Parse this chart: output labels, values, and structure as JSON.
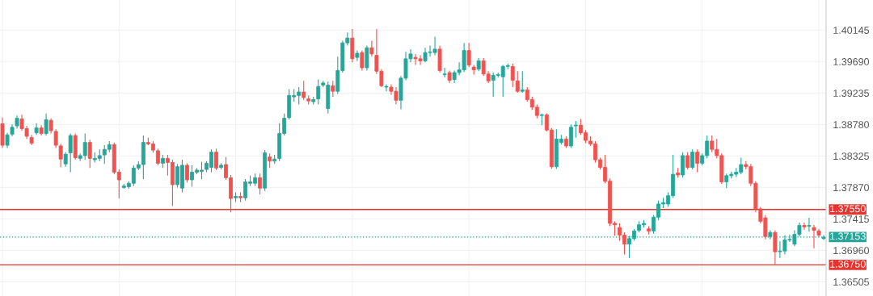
{
  "chart_data": {
    "type": "candlestick",
    "categories": [
      null,
      null,
      null,
      null,
      null,
      null,
      null,
      null,
      null,
      null,
      null,
      null,
      null,
      null,
      null,
      null,
      null,
      null,
      null,
      null,
      null,
      null,
      null,
      null,
      null,
      null,
      null,
      null,
      null,
      null,
      null,
      null,
      null,
      null,
      null,
      null,
      null,
      null,
      null,
      null,
      null,
      null,
      null,
      null,
      null,
      null,
      null,
      null,
      null,
      null,
      null,
      null,
      null,
      null,
      null,
      null,
      null,
      null,
      null,
      null,
      null,
      null,
      null,
      null,
      null,
      null,
      null,
      null,
      null,
      null,
      null,
      null,
      null,
      null,
      null,
      null,
      null,
      null,
      null,
      null,
      null,
      null,
      null,
      null,
      null,
      null,
      null,
      null,
      null,
      null,
      null,
      null,
      null,
      null,
      null,
      null,
      null,
      null,
      null,
      null,
      null,
      null,
      null,
      null,
      null,
      null,
      null,
      null,
      null,
      null,
      null,
      null,
      null,
      null,
      null,
      null,
      null,
      null,
      null,
      null,
      null,
      null,
      null,
      null,
      null,
      null,
      null,
      null,
      null,
      null,
      null,
      null,
      null,
      null,
      null,
      null,
      null,
      null,
      null,
      null,
      null,
      null,
      null,
      null,
      null,
      null,
      null,
      null,
      null,
      null,
      null,
      null,
      null,
      null,
      null,
      null,
      null,
      null,
      null,
      null,
      null,
      null,
      null,
      null,
      null,
      null,
      null,
      null,
      null,
      null
    ],
    "colors": [
      "#ef5350",
      "#26a69a",
      "#26a69a",
      "#26a69a",
      "#ef5350",
      "#ef5350",
      "#ef5350",
      "#26a69a",
      "#ef5350",
      "#26a69a",
      "#ef5350",
      "#ef5350",
      "#ef5350",
      "#26a69a",
      "#26a69a",
      "#ef5350",
      "#26a69a",
      "#26a69a",
      "#ef5350",
      "#26a69a",
      "#26a69a",
      "#26a69a",
      "#26a69a",
      "#ef5350",
      "#ef5350",
      "#26a69a",
      "#26a69a",
      "#26a69a",
      "#26a69a",
      "#26a69a",
      "#ef5350",
      "#ef5350",
      "#ef5350",
      "#26a69a",
      "#ef5350",
      "#ef5350",
      "#26a69a",
      "#26a69a",
      "#ef5350",
      "#26a69a",
      "#26a69a",
      "#26a69a",
      "#26a69a",
      "#26a69a",
      "#ef5350",
      "#26a69a",
      "#ef5350",
      "#ef5350",
      "#26a69a",
      "#ef5350",
      "#26a69a",
      "#26a69a",
      "#26a69a",
      "#ef5350",
      "#26a69a",
      "#ef5350",
      "#26a69a",
      "#26a69a",
      "#26a69a",
      "#26a69a",
      "#26a69a",
      "#26a69a",
      "#ef5350",
      "#ef5350",
      "#26a69a",
      "#26a69a",
      "#26a69a",
      "#26a69a",
      "#ef5350",
      "#26a69a",
      "#26a69a",
      "#26a69a",
      "#ef5350",
      "#26a69a",
      "#ef5350",
      "#26a69a",
      "#ef5350",
      "#ef5350",
      "#ef5350",
      "#26a69a",
      "#ef5350",
      "#ef5350",
      "#26a69a",
      "#26a69a",
      "#26a69a",
      "#ef5350",
      "#ef5350",
      "#26a69a",
      "#26a69a",
      "#26a69a",
      "#ef5350",
      "#26a69a",
      "#ef5350",
      "#26a69a",
      "#26a69a",
      "#26a69a",
      "#ef5350",
      "#ef5350",
      "#26a69a",
      "#ef5350",
      "#ef5350",
      "#26a69a",
      "#26a69a",
      "#26a69a",
      "#26a69a",
      "#ef5350",
      "#ef5350",
      "#26a69a",
      "#ef5350",
      "#ef5350",
      "#ef5350",
      "#26a69a",
      "#ef5350",
      "#ef5350",
      "#26a69a",
      "#26a69a",
      "#ef5350",
      "#26a69a",
      "#26a69a",
      "#ef5350",
      "#ef5350",
      "#ef5350",
      "#ef5350",
      "#ef5350",
      "#ef5350",
      "#ef5350",
      "#ef5350",
      "#ef5350",
      "#ef5350",
      "#26a69a",
      "#26a69a",
      "#26a69a",
      "#26a69a",
      "#ef5350",
      "#26a69a",
      "#26a69a",
      "#26a69a",
      "#26a69a",
      "#26a69a",
      "#ef5350",
      "#26a69a",
      "#ef5350",
      "#26a69a",
      "#ef5350",
      "#26a69a",
      "#26a69a",
      "#ef5350",
      "#ef5350",
      "#ef5350",
      "#26a69a",
      "#26a69a",
      "#26a69a",
      "#26a69a",
      "#ef5350",
      "#ef5350",
      "#ef5350",
      "#ef5350",
      "#ef5350",
      "#26a69a",
      "#ef5350",
      "#26a69a",
      "#26a69a",
      "#26a69a",
      "#26a69a",
      "#26a69a",
      "#ef5350",
      "#26a69a",
      "#ef5350",
      "#ef5350",
      "#26a69a"
    ],
    "ohlc": [
      [
        1.3879,
        1.3888,
        1.3844,
        1.3848
      ],
      [
        1.3848,
        1.3866,
        1.3844,
        1.3863
      ],
      [
        1.3864,
        1.3878,
        1.3861,
        1.3874
      ],
      [
        1.3876,
        1.3891,
        1.3872,
        1.3887
      ],
      [
        1.3886,
        1.3892,
        1.3869,
        1.3872
      ],
      [
        1.3872,
        1.3876,
        1.3857,
        1.3861
      ],
      [
        1.3859,
        1.3863,
        1.3848,
        1.3851
      ],
      [
        1.3866,
        1.388,
        1.3863,
        1.3873
      ],
      [
        1.3873,
        1.3877,
        1.3862,
        1.3865
      ],
      [
        1.3865,
        1.3894,
        1.3862,
        1.3885
      ],
      [
        1.3884,
        1.3887,
        1.3865,
        1.3869
      ],
      [
        1.3868,
        1.3871,
        1.3844,
        1.3848
      ],
      [
        1.3847,
        1.385,
        1.3816,
        1.3828
      ],
      [
        1.3821,
        1.3838,
        1.3817,
        1.3835
      ],
      [
        1.3837,
        1.3865,
        1.3809,
        1.3862
      ],
      [
        1.3862,
        1.3865,
        1.3827,
        1.383
      ],
      [
        1.3829,
        1.3836,
        1.3825,
        1.3833
      ],
      [
        1.3833,
        1.3865,
        1.3827,
        1.3852
      ],
      [
        1.3852,
        1.3856,
        1.3815,
        1.3829
      ],
      [
        1.3827,
        1.3838,
        1.3823,
        1.3829
      ],
      [
        1.3829,
        1.3842,
        1.3825,
        1.3833
      ],
      [
        1.3834,
        1.3848,
        1.3821,
        1.3842
      ],
      [
        1.3842,
        1.3854,
        1.3838,
        1.3849
      ],
      [
        1.3849,
        1.3852,
        1.3806,
        1.3809
      ],
      [
        1.3809,
        1.3813,
        1.3771,
        1.3798
      ],
      [
        1.3787,
        1.3792,
        1.3785,
        1.3789
      ],
      [
        1.3788,
        1.3796,
        1.3785,
        1.3793
      ],
      [
        1.3793,
        1.3819,
        1.3789,
        1.3815
      ],
      [
        1.3815,
        1.3825,
        1.3812,
        1.382
      ],
      [
        1.382,
        1.3862,
        1.3799,
        1.3852
      ],
      [
        1.3852,
        1.3859,
        1.3848,
        1.385
      ],
      [
        1.385,
        1.3854,
        1.3837,
        1.3841
      ],
      [
        1.384,
        1.3843,
        1.3819,
        1.3822
      ],
      [
        1.3822,
        1.3834,
        1.3815,
        1.3829
      ],
      [
        1.3829,
        1.3834,
        1.3804,
        1.3823
      ],
      [
        1.3823,
        1.3827,
        1.376,
        1.3791
      ],
      [
        1.3791,
        1.3821,
        1.3787,
        1.3817
      ],
      [
        1.3786,
        1.3827,
        1.378,
        1.3819
      ],
      [
        1.3819,
        1.3822,
        1.3794,
        1.3798
      ],
      [
        1.3798,
        1.3819,
        1.3788,
        1.3809
      ],
      [
        1.3809,
        1.3815,
        1.3806,
        1.3812
      ],
      [
        1.381,
        1.3824,
        1.3799,
        1.3812
      ],
      [
        1.3813,
        1.3825,
        1.3809,
        1.3822
      ],
      [
        1.3816,
        1.3842,
        1.3809,
        1.3838
      ],
      [
        1.3838,
        1.3843,
        1.3812,
        1.3815
      ],
      [
        1.3816,
        1.3822,
        1.3813,
        1.3819
      ],
      [
        1.382,
        1.3831,
        1.3798,
        1.3801
      ],
      [
        1.3801,
        1.3805,
        1.3751,
        1.3771
      ],
      [
        1.3772,
        1.378,
        1.3766,
        1.3774
      ],
      [
        1.3774,
        1.378,
        1.3766,
        1.3772
      ],
      [
        1.3772,
        1.3799,
        1.3768,
        1.3795
      ],
      [
        1.3793,
        1.3804,
        1.3789,
        1.3795
      ],
      [
        1.3793,
        1.3807,
        1.3789,
        1.3801
      ],
      [
        1.3801,
        1.3807,
        1.3777,
        1.3786
      ],
      [
        1.3786,
        1.3841,
        1.3782,
        1.3837
      ],
      [
        1.3831,
        1.3836,
        1.3815,
        1.3825
      ],
      [
        1.3825,
        1.3834,
        1.3821,
        1.3828
      ],
      [
        1.3829,
        1.388,
        1.3825,
        1.3865
      ],
      [
        1.3865,
        1.3894,
        1.3862,
        1.3887
      ],
      [
        1.3888,
        1.3929,
        1.3885,
        1.392
      ],
      [
        1.3918,
        1.3929,
        1.3911,
        1.392
      ],
      [
        1.392,
        1.3932,
        1.3907,
        1.3925
      ],
      [
        1.3925,
        1.3941,
        1.3913,
        1.3917
      ],
      [
        1.3915,
        1.392,
        1.3907,
        1.3912
      ],
      [
        1.3911,
        1.3918,
        1.3907,
        1.3914
      ],
      [
        1.3915,
        1.3943,
        1.3907,
        1.3933
      ],
      [
        1.3935,
        1.3941,
        1.3932,
        1.3938
      ],
      [
        1.3901,
        1.394,
        1.3894,
        1.3935
      ],
      [
        1.3934,
        1.3941,
        1.3918,
        1.3926
      ],
      [
        1.3926,
        1.3976,
        1.3922,
        1.3956
      ],
      [
        1.3956,
        1.3999,
        1.3953,
        1.3996
      ],
      [
        1.3996,
        1.4011,
        1.3992,
        1.4003
      ],
      [
        1.4003,
        1.4016,
        1.3968,
        1.3973
      ],
      [
        1.3975,
        1.3985,
        1.397,
        1.3981
      ],
      [
        1.3982,
        1.3985,
        1.3956,
        1.396
      ],
      [
        1.396,
        1.3992,
        1.3956,
        1.3989
      ],
      [
        1.3989,
        1.3999,
        1.3976,
        1.398
      ],
      [
        1.3978,
        1.4016,
        1.3951,
        1.3955
      ],
      [
        1.3955,
        1.3958,
        1.3932,
        1.3934
      ],
      [
        1.3932,
        1.3936,
        1.3926,
        1.3933
      ],
      [
        1.3932,
        1.3936,
        1.3921,
        1.3926
      ],
      [
        1.3926,
        1.3932,
        1.3907,
        1.3913
      ],
      [
        1.3913,
        1.3948,
        1.39,
        1.3945
      ],
      [
        1.3945,
        1.3983,
        1.3942,
        1.3973
      ],
      [
        1.3973,
        1.3987,
        1.3968,
        1.398
      ],
      [
        1.3975,
        1.398,
        1.3964,
        1.3973
      ],
      [
        1.3973,
        1.3978,
        1.3964,
        1.397
      ],
      [
        1.397,
        1.3989,
        1.3968,
        1.3982
      ],
      [
        1.3982,
        1.3992,
        1.3976,
        1.3983
      ],
      [
        1.3982,
        1.4005,
        1.3978,
        1.3987
      ],
      [
        1.3987,
        1.3992,
        1.3953,
        1.3956
      ],
      [
        1.395,
        1.396,
        1.3946,
        1.3951
      ],
      [
        1.3953,
        1.3956,
        1.3938,
        1.3942
      ],
      [
        1.3943,
        1.3956,
        1.3938,
        1.3953
      ],
      [
        1.3953,
        1.3968,
        1.3949,
        1.3957
      ],
      [
        1.3957,
        1.3996,
        1.3954,
        1.3985
      ],
      [
        1.3985,
        1.3996,
        1.3961,
        1.3964
      ],
      [
        1.3961,
        1.3964,
        1.395,
        1.3957
      ],
      [
        1.3958,
        1.3974,
        1.3955,
        1.397
      ],
      [
        1.397,
        1.3974,
        1.3948,
        1.3951
      ],
      [
        1.3951,
        1.3955,
        1.3938,
        1.3941
      ],
      [
        1.3942,
        1.3953,
        1.3918,
        1.3949
      ],
      [
        1.3949,
        1.3953,
        1.3946,
        1.395
      ],
      [
        1.3947,
        1.3964,
        1.3918,
        1.3962
      ],
      [
        1.3962,
        1.3966,
        1.3958,
        1.3963
      ],
      [
        1.3962,
        1.3966,
        1.3932,
        1.3942
      ],
      [
        1.3941,
        1.3955,
        1.3924,
        1.3926
      ],
      [
        1.3926,
        1.3955,
        1.3924,
        1.3928
      ],
      [
        1.3928,
        1.3932,
        1.3911,
        1.3914
      ],
      [
        1.3914,
        1.3918,
        1.3899,
        1.3903
      ],
      [
        1.3903,
        1.3907,
        1.3887,
        1.3891
      ],
      [
        1.3891,
        1.3894,
        1.3877,
        1.3892
      ],
      [
        1.3892,
        1.3894,
        1.3868,
        1.387
      ],
      [
        1.387,
        1.3873,
        1.3814,
        1.3817
      ],
      [
        1.3817,
        1.3871,
        1.3814,
        1.3857
      ],
      [
        1.3852,
        1.3863,
        1.3849,
        1.3857
      ],
      [
        1.3857,
        1.3861,
        1.3844,
        1.3847
      ],
      [
        1.3847,
        1.3878,
        1.3844,
        1.3874
      ],
      [
        1.3876,
        1.3883,
        1.3859,
        1.3877
      ],
      [
        1.3877,
        1.3886,
        1.3863,
        1.3866
      ],
      [
        1.3866,
        1.387,
        1.3851,
        1.3855
      ],
      [
        1.3854,
        1.3861,
        1.3847,
        1.385
      ],
      [
        1.385,
        1.3854,
        1.3823,
        1.3827
      ],
      [
        1.3827,
        1.383,
        1.3813,
        1.3816
      ],
      [
        1.3816,
        1.3834,
        1.3793,
        1.3796
      ],
      [
        1.3796,
        1.38,
        1.3731,
        1.3735
      ],
      [
        1.3735,
        1.3738,
        1.3717,
        1.3733
      ],
      [
        1.3729,
        1.3735,
        1.371,
        1.3718
      ],
      [
        1.3718,
        1.3722,
        1.369,
        1.3705
      ],
      [
        1.3705,
        1.3717,
        1.3685,
        1.3713
      ],
      [
        1.3713,
        1.3727,
        1.371,
        1.3724
      ],
      [
        1.3725,
        1.3738,
        1.3722,
        1.3733
      ],
      [
        1.3733,
        1.374,
        1.3729,
        1.3735
      ],
      [
        1.3727,
        1.3731,
        1.3719,
        1.3724
      ],
      [
        1.3724,
        1.3747,
        1.372,
        1.3744
      ],
      [
        1.3744,
        1.3768,
        1.374,
        1.3763
      ],
      [
        1.3763,
        1.3772,
        1.3757,
        1.3765
      ],
      [
        1.3763,
        1.378,
        1.3759,
        1.3775
      ],
      [
        1.3775,
        1.3834,
        1.3772,
        1.3806
      ],
      [
        1.3808,
        1.3815,
        1.3801,
        1.3805
      ],
      [
        1.3805,
        1.3838,
        1.3801,
        1.3833
      ],
      [
        1.3833,
        1.3838,
        1.3813,
        1.3816
      ],
      [
        1.3816,
        1.3842,
        1.3813,
        1.3838
      ],
      [
        1.3838,
        1.3842,
        1.3809,
        1.3822
      ],
      [
        1.3822,
        1.3836,
        1.3819,
        1.3833
      ],
      [
        1.3833,
        1.3862,
        1.3829,
        1.3854
      ],
      [
        1.3854,
        1.3862,
        1.3838,
        1.3842
      ],
      [
        1.3842,
        1.3857,
        1.3829,
        1.3833
      ],
      [
        1.3833,
        1.3836,
        1.3792,
        1.3795
      ],
      [
        1.3795,
        1.3807,
        1.3786,
        1.3804
      ],
      [
        1.3804,
        1.381,
        1.38,
        1.3806
      ],
      [
        1.3806,
        1.3815,
        1.3802,
        1.3809
      ],
      [
        1.3809,
        1.383,
        1.3806,
        1.382
      ],
      [
        1.382,
        1.3825,
        1.3813,
        1.3817
      ],
      [
        1.3817,
        1.3821,
        1.3789,
        1.3793
      ],
      [
        1.3793,
        1.3796,
        1.3751,
        1.3756
      ],
      [
        1.3756,
        1.3759,
        1.3735,
        1.3738
      ],
      [
        1.3743,
        1.3747,
        1.3712,
        1.3716
      ],
      [
        1.3716,
        1.3725,
        1.3712,
        1.3722
      ],
      [
        1.3722,
        1.3725,
        1.3676,
        1.3694
      ],
      [
        1.3694,
        1.3709,
        1.3685,
        1.3695
      ],
      [
        1.3695,
        1.3718,
        1.369,
        1.3711
      ],
      [
        1.3711,
        1.3719,
        1.3708,
        1.3712
      ],
      [
        1.3705,
        1.3725,
        1.3702,
        1.3719
      ],
      [
        1.3719,
        1.3736,
        1.3716,
        1.3732
      ],
      [
        1.3732,
        1.3736,
        1.3726,
        1.373
      ],
      [
        1.3731,
        1.3743,
        1.3723,
        1.3732
      ],
      [
        1.3729,
        1.3733,
        1.3699,
        1.3725
      ],
      [
        1.3724,
        1.3727,
        1.3715,
        1.3718
      ],
      [
        1.3713,
        1.3718,
        1.3711,
        1.3715
      ]
    ],
    "ylim": [
      1.363,
      1.4058
    ],
    "yticks": [
      {
        "value": 1.36505,
        "label": "1.36505"
      },
      {
        "value": 1.3696,
        "label": "1.36960"
      },
      {
        "value": 1.37415,
        "label": "1.37415"
      },
      {
        "value": 1.3787,
        "label": "1.37870"
      },
      {
        "value": 1.38325,
        "label": "1.38325"
      },
      {
        "value": 1.3878,
        "label": "1.38780"
      },
      {
        "value": 1.39235,
        "label": "1.39235"
      },
      {
        "value": 1.3969,
        "label": "1.39690"
      },
      {
        "value": 1.40145,
        "label": "1.40145"
      }
    ],
    "ref_lines": [
      {
        "axis": "y",
        "value": 1.3755,
        "label": "1.37550",
        "color": "#e8342f",
        "line_style": "solid"
      },
      {
        "axis": "y",
        "value": 1.3675,
        "label": "1.36750",
        "color": "#e8342f",
        "line_style": "solid"
      },
      {
        "axis": "y",
        "value": 1.37153,
        "label": "1.37153",
        "color": "#26a69a",
        "line_style": "dotted"
      }
    ],
    "grid": true
  }
}
